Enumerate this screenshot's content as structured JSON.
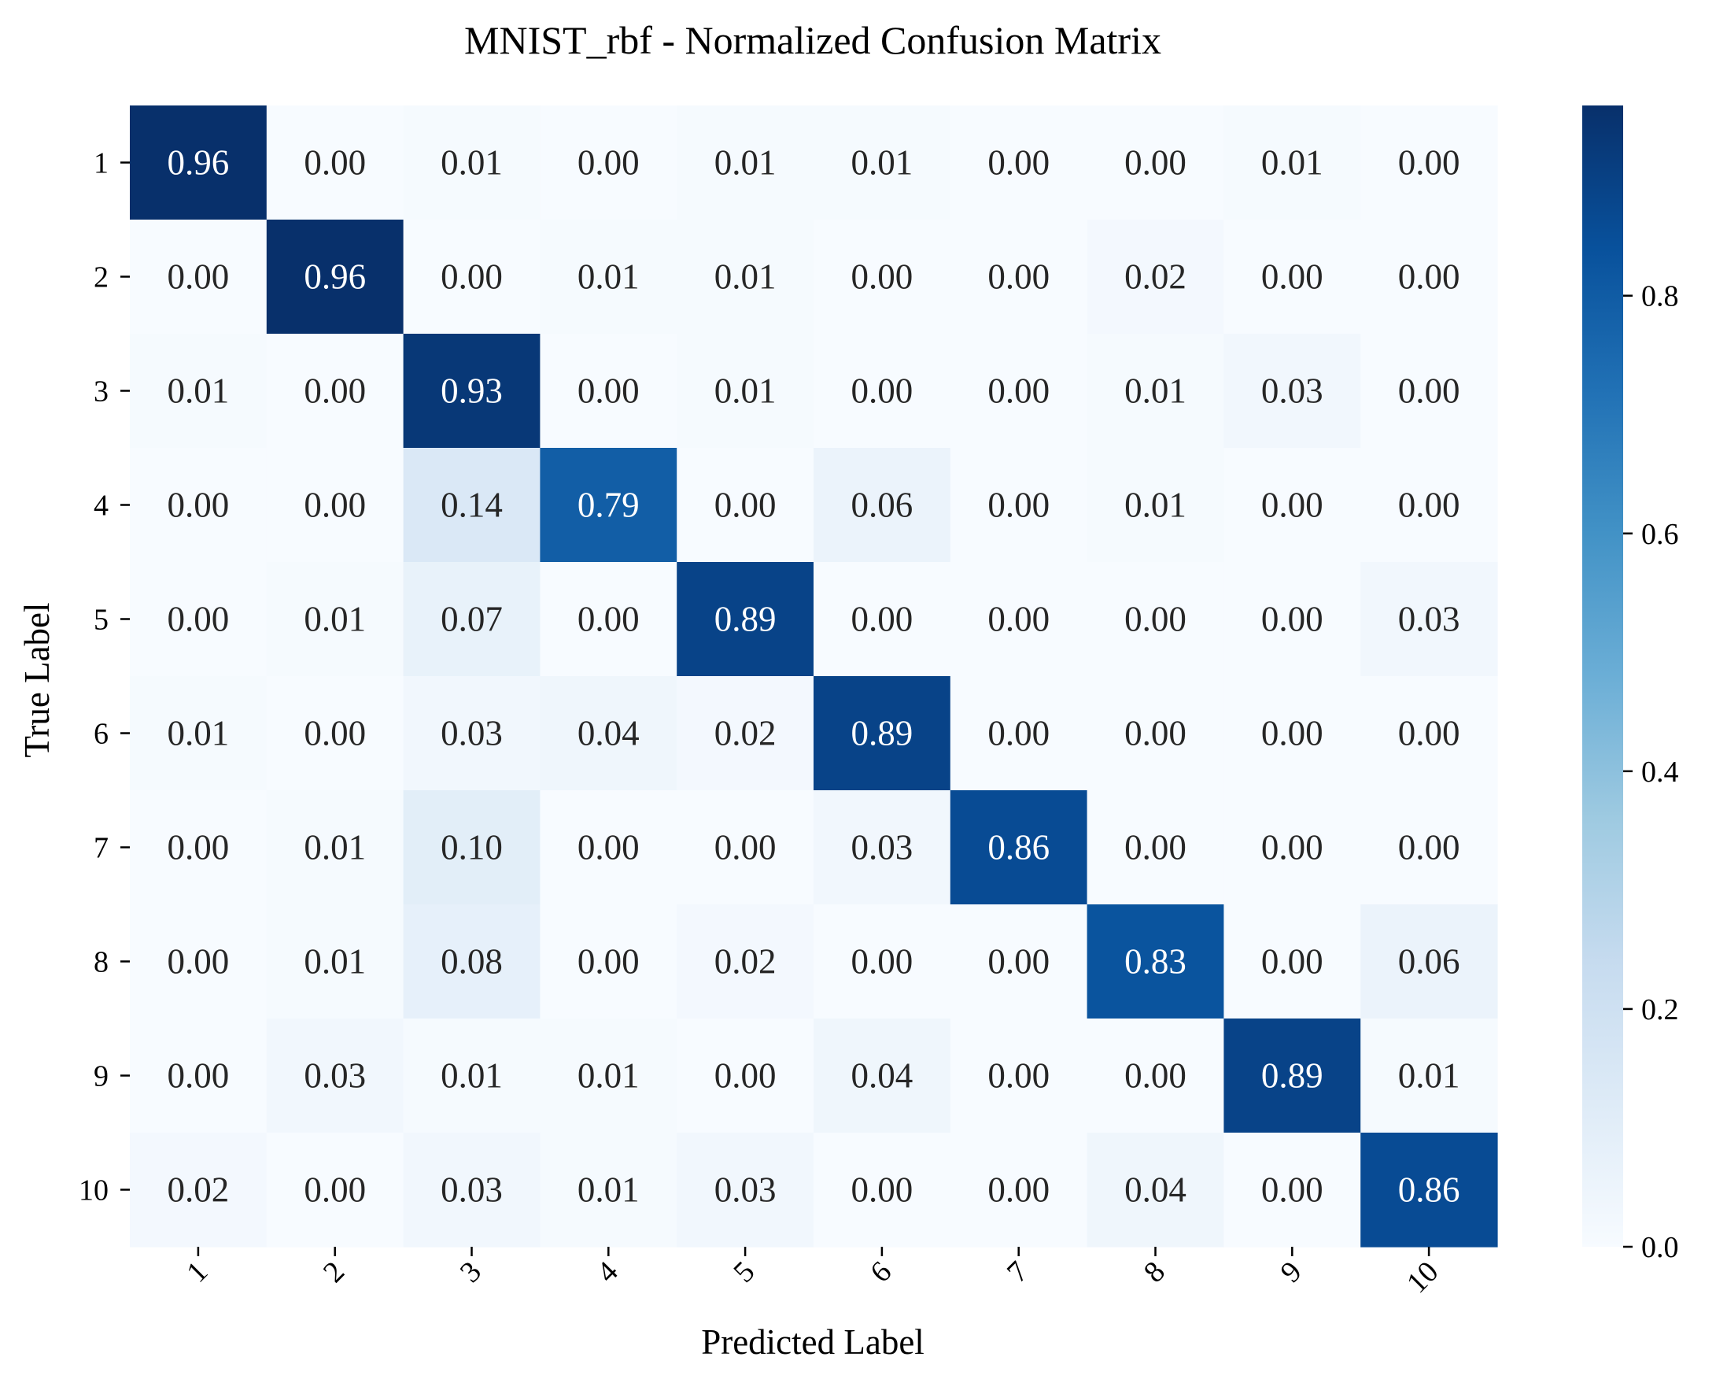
{
  "chart_data": {
    "type": "heatmap",
    "title": "MNIST_rbf - Normalized Confusion Matrix",
    "xlabel": "Predicted Label",
    "ylabel": "True Label",
    "x_categories": [
      "1",
      "2",
      "3",
      "4",
      "5",
      "6",
      "7",
      "8",
      "9",
      "10"
    ],
    "y_categories": [
      "1",
      "2",
      "3",
      "4",
      "5",
      "6",
      "7",
      "8",
      "9",
      "10"
    ],
    "values": [
      [
        0.96,
        0.0,
        0.01,
        0.0,
        0.01,
        0.01,
        0.0,
        0.0,
        0.01,
        0.0
      ],
      [
        0.0,
        0.96,
        0.0,
        0.01,
        0.01,
        0.0,
        0.0,
        0.02,
        0.0,
        0.0
      ],
      [
        0.01,
        0.0,
        0.93,
        0.0,
        0.01,
        0.0,
        0.0,
        0.01,
        0.03,
        0.0
      ],
      [
        0.0,
        0.0,
        0.14,
        0.79,
        0.0,
        0.06,
        0.0,
        0.01,
        0.0,
        0.0
      ],
      [
        0.0,
        0.01,
        0.07,
        0.0,
        0.89,
        0.0,
        0.0,
        0.0,
        0.0,
        0.03
      ],
      [
        0.01,
        0.0,
        0.03,
        0.04,
        0.02,
        0.89,
        0.0,
        0.0,
        0.0,
        0.0
      ],
      [
        0.0,
        0.01,
        0.1,
        0.0,
        0.0,
        0.03,
        0.86,
        0.0,
        0.0,
        0.0
      ],
      [
        0.0,
        0.01,
        0.08,
        0.0,
        0.02,
        0.0,
        0.0,
        0.83,
        0.0,
        0.06
      ],
      [
        0.0,
        0.03,
        0.01,
        0.01,
        0.0,
        0.04,
        0.0,
        0.0,
        0.89,
        0.01
      ],
      [
        0.02,
        0.0,
        0.03,
        0.01,
        0.03,
        0.0,
        0.0,
        0.04,
        0.0,
        0.86
      ]
    ],
    "colormap": "Blues",
    "vmin": 0.0,
    "vmax": 0.96,
    "colorbar_ticks": [
      "0.0",
      "0.2",
      "0.4",
      "0.6",
      "0.8"
    ],
    "grid": false,
    "legend": "colorbar-right"
  }
}
